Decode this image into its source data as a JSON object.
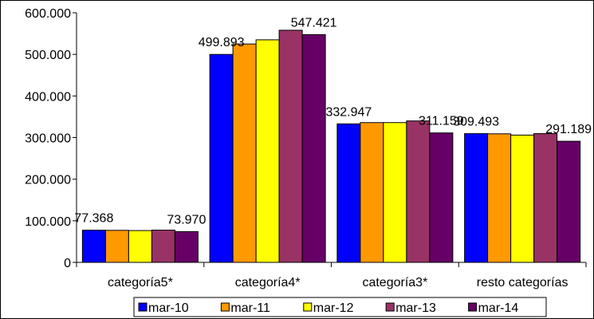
{
  "chart_data": {
    "type": "bar",
    "categories": [
      "categoría5*",
      "categoría4*",
      "categoría3*",
      "resto categorías"
    ],
    "series": [
      {
        "name": "mar-10",
        "color": "#0000FF",
        "values": [
          77368,
          499893,
          332947,
          309493
        ]
      },
      {
        "name": "mar-11",
        "color": "#FF9900",
        "values": [
          77000,
          525000,
          336000,
          309000
        ]
      },
      {
        "name": "mar-12",
        "color": "#FFFF00",
        "values": [
          76500,
          535000,
          336000,
          306000
        ]
      },
      {
        "name": "mar-13",
        "color": "#993366",
        "values": [
          77500,
          558000,
          340000,
          309500
        ]
      },
      {
        "name": "mar-14",
        "color": "#660066",
        "values": [
          73970,
          547421,
          311159,
          291189
        ]
      }
    ],
    "data_labels": [
      {
        "category": 0,
        "series": 0,
        "text": "77.368"
      },
      {
        "category": 0,
        "series": 4,
        "text": "73.970"
      },
      {
        "category": 1,
        "series": 0,
        "text": "499.893"
      },
      {
        "category": 1,
        "series": 4,
        "text": "547.421"
      },
      {
        "category": 2,
        "series": 0,
        "text": "332.947"
      },
      {
        "category": 2,
        "series": 4,
        "text": "311.159"
      },
      {
        "category": 3,
        "series": 0,
        "text": "309.493"
      },
      {
        "category": 3,
        "series": 4,
        "text": "291.189"
      }
    ],
    "y_ticks": [
      0,
      100000,
      200000,
      300000,
      400000,
      500000,
      600000
    ],
    "y_tick_labels": [
      "0",
      "100.000",
      "200.000",
      "300.000",
      "400.000",
      "500.000",
      "600.000"
    ],
    "ylim": [
      0,
      600000
    ],
    "grid": false,
    "legend_position": "bottom"
  }
}
